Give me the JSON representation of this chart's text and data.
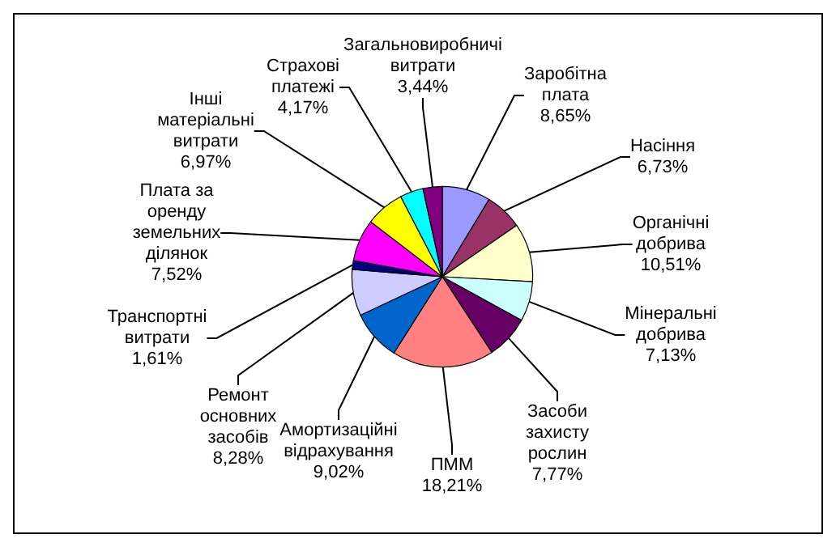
{
  "chart_data": {
    "type": "pie",
    "categories": [
      "Заробітна плата",
      "Насіння",
      "Органічні добрива",
      "Мінеральні добрива",
      "Засоби захисту рослин",
      "ПММ",
      "Амортизаційні відрахування",
      "Ремонт основних засобів",
      "Транспортні витрати",
      "Плата за оренду земельних ділянок",
      "Інші матеріальні витрати",
      "Страхові платежі",
      "Загальновиробничі витрати"
    ],
    "values": [
      8.65,
      6.73,
      10.51,
      7.13,
      7.77,
      18.21,
      9.02,
      8.28,
      1.61,
      7.52,
      6.97,
      4.17,
      3.44
    ],
    "value_labels": [
      "8,65%",
      "6,73%",
      "10,51%",
      "7,13%",
      "7,77%",
      "18,21%",
      "9,02%",
      "8,28%",
      "1,61%",
      "7,52%",
      "6,97%",
      "4,17%",
      "3,44%"
    ],
    "colors": [
      "#9999ff",
      "#993366",
      "#ffffcc",
      "#ccffff",
      "#660066",
      "#ff8080",
      "#0066cc",
      "#ccccff",
      "#000080",
      "#ff00ff",
      "#ffff00",
      "#00ffff",
      "#800080"
    ],
    "legend": false
  }
}
